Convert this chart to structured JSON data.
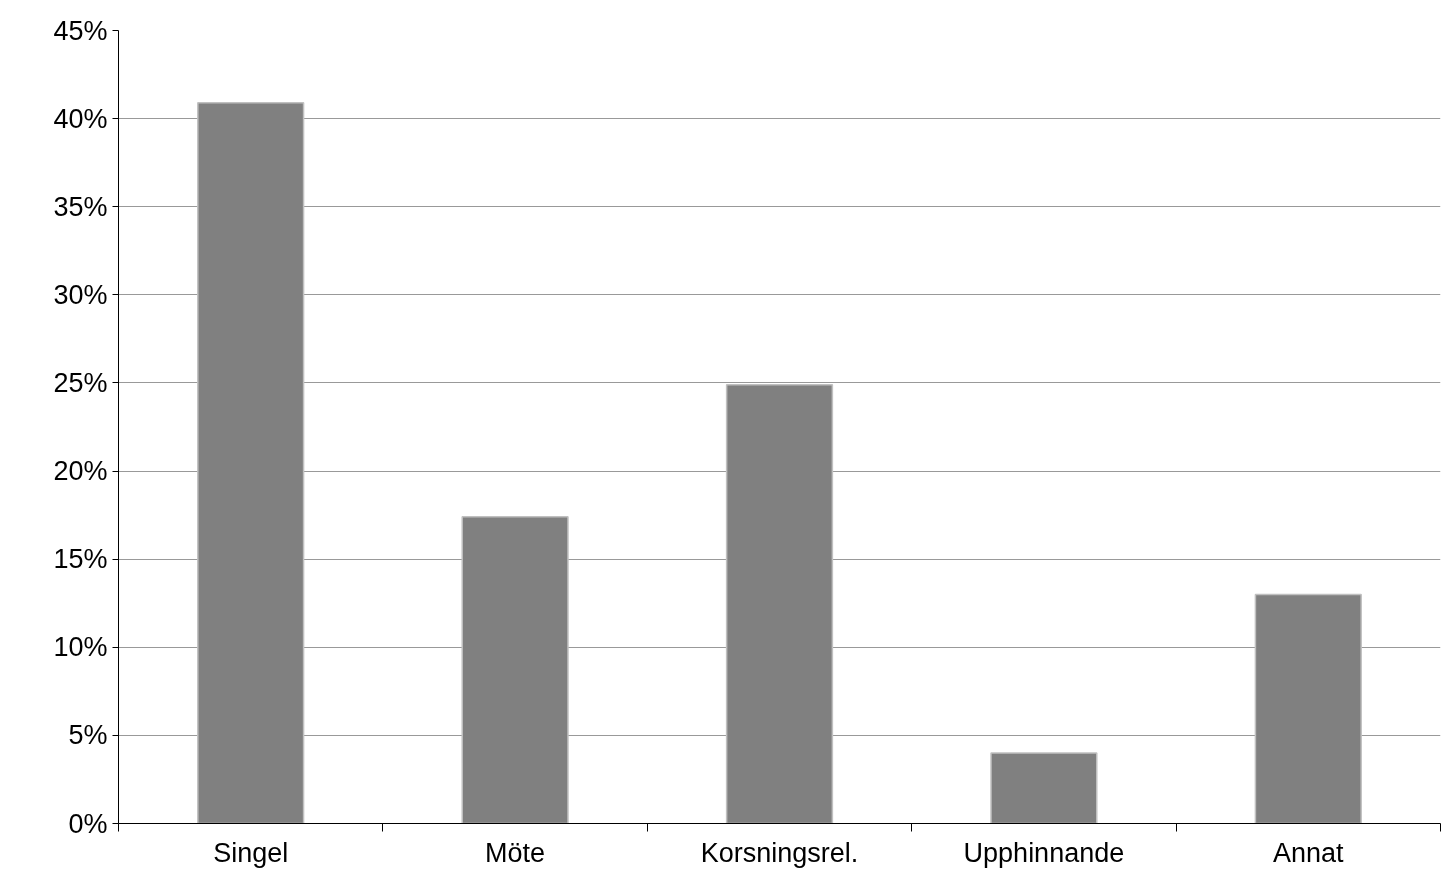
{
  "chart_data": {
    "type": "bar",
    "categories": [
      "Singel",
      "Möte",
      "Korsningsrel.",
      "Upphinnande",
      "Annat"
    ],
    "values": [
      40.9,
      17.4,
      24.9,
      4.0,
      13.0
    ],
    "color": "#808080",
    "ylim": [
      0,
      45
    ],
    "yticks": [
      {
        "value": 0,
        "label": "0%"
      },
      {
        "value": 5,
        "label": "5%"
      },
      {
        "value": 10,
        "label": "10%"
      },
      {
        "value": 15,
        "label": "15%"
      },
      {
        "value": 20,
        "label": "20%"
      },
      {
        "value": 25,
        "label": "25%"
      },
      {
        "value": 30,
        "label": "30%"
      },
      {
        "value": 35,
        "label": "35%"
      },
      {
        "value": 40,
        "label": "40%"
      },
      {
        "value": 45,
        "label": "45%"
      }
    ],
    "grid": "y"
  }
}
